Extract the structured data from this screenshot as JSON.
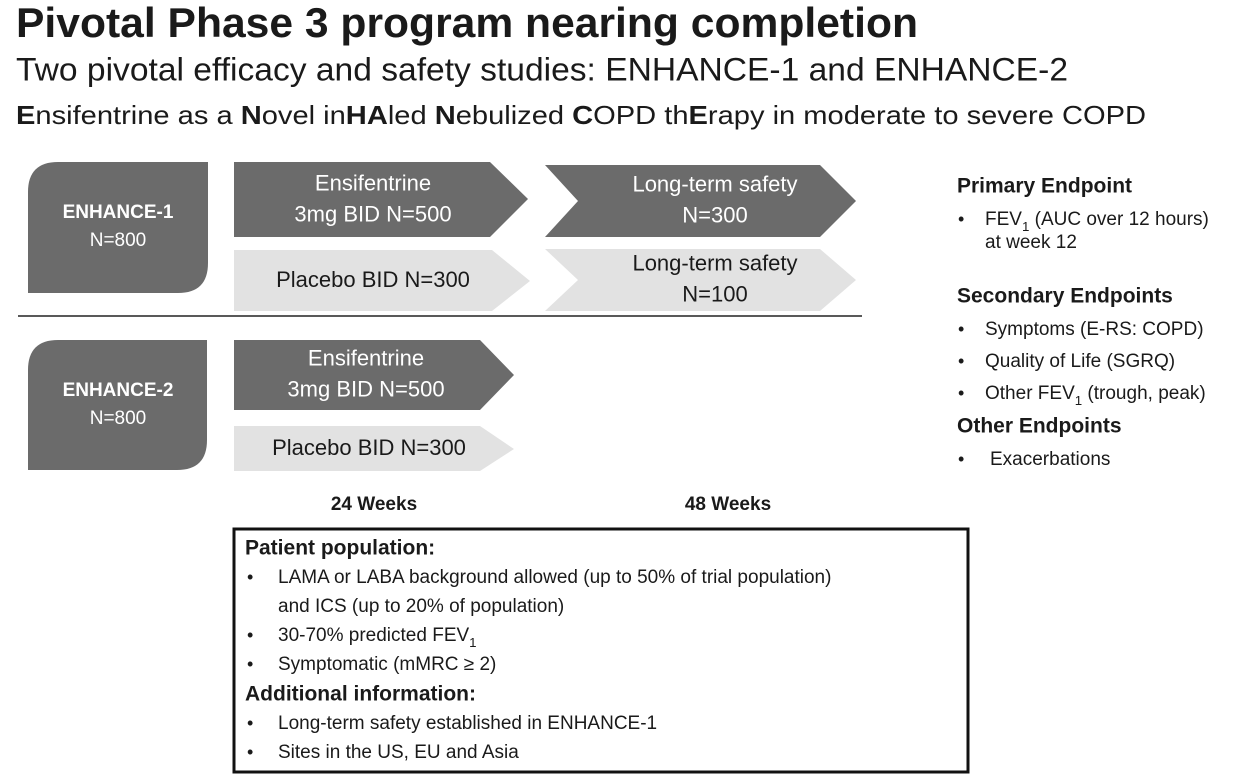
{
  "title": "Pivotal Phase 3 program nearing completion",
  "subtitle": "Two pivotal efficacy and safety studies: ENHANCE-1 and ENHANCE-2",
  "tagline": {
    "segments": [
      "E",
      "nsifentrine as a ",
      "N",
      "ovel in",
      "HA",
      "led ",
      "N",
      "ebulized ",
      "C",
      "OPD th",
      "E",
      "rapy in moderate to severe COPD"
    ]
  },
  "studies": [
    {
      "name": "ENHANCE-1",
      "n": "N=800",
      "arms": [
        {
          "lines": [
            "Ensifentrine",
            "3mg BID  N=500"
          ]
        },
        {
          "lines": [
            "Placebo BID N=300"
          ]
        }
      ],
      "extensions": [
        {
          "lines": [
            "Long-term safety",
            "N=300"
          ]
        },
        {
          "lines": [
            "Long-term safety",
            "N=100"
          ]
        }
      ]
    },
    {
      "name": "ENHANCE-2",
      "n": "N=800",
      "arms": [
        {
          "lines": [
            "Ensifentrine",
            "3mg BID N=500"
          ]
        },
        {
          "lines": [
            "Placebo BID N=300"
          ]
        }
      ]
    }
  ],
  "timeline": [
    "24 Weeks",
    "48 Weeks"
  ],
  "population_box": {
    "sections": [
      {
        "heading": "Patient population:",
        "items": [
          {
            "lines": [
              "LAMA or LABA background allowed (up to 50% of trial population)",
              "and ICS (up to 20% of population)"
            ]
          },
          {
            "lines": [
              {
                "text": "30-70% predicted FEV",
                "sub": "1"
              }
            ]
          },
          {
            "lines": [
              "Symptomatic (mMRC ≥ 2)"
            ]
          }
        ]
      },
      {
        "heading": "Additional information:",
        "items": [
          {
            "lines": [
              "Long-term safety established in ENHANCE-1"
            ]
          },
          {
            "lines": [
              "Sites in the US, EU and Asia"
            ]
          }
        ]
      }
    ]
  },
  "endpoints": [
    {
      "heading": "Primary Endpoint",
      "items": [
        {
          "lines": [
            {
              "text": "FEV",
              "sub": "1",
              "after": " (AUC over 12 hours)"
            },
            "at week 12"
          ]
        }
      ]
    },
    {
      "heading": "Secondary Endpoints",
      "items": [
        {
          "lines": [
            "Symptoms (E-RS: COPD)"
          ]
        },
        {
          "lines": [
            "Quality of Life (SGRQ)"
          ]
        },
        {
          "lines": [
            {
              "text": "Other FEV",
              "sub": "1",
              "after": " (trough, peak)"
            }
          ]
        }
      ]
    },
    {
      "heading": "Other Endpoints",
      "items": [
        {
          "lines": [
            "Exacerbations"
          ]
        }
      ]
    }
  ]
}
